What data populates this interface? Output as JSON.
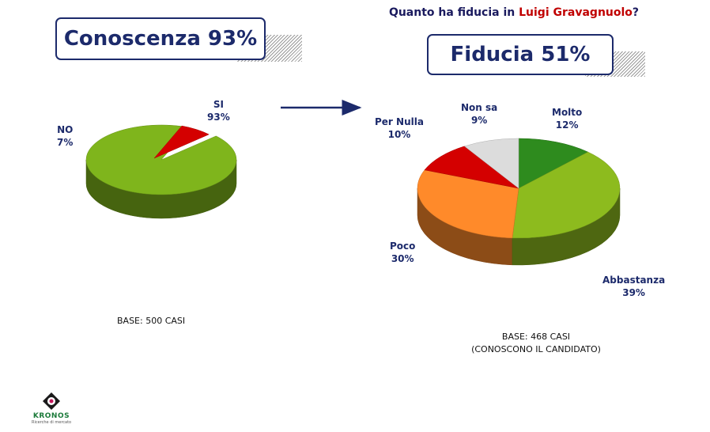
{
  "headline": {
    "prefix": "Quanto ha fiducia in ",
    "name": "Luigi Gravagnuolo",
    "suffix": "?"
  },
  "boxes": {
    "left": "Conoscenza 93%",
    "right": "Fiducia 51%"
  },
  "chart_data": [
    {
      "type": "pie",
      "title": "Conoscenza 93%",
      "slices": [
        {
          "label": "SI",
          "value": 93,
          "pct": "93%",
          "color": "#7fb51c"
        },
        {
          "label": "NO",
          "value": 7,
          "pct": "7%",
          "color": "#d40000"
        }
      ],
      "base": "BASE: 500 CASI"
    },
    {
      "type": "pie",
      "title": "Fiducia 51%",
      "slices": [
        {
          "label": "Molto",
          "value": 12,
          "pct": "12%",
          "color": "#2e8b1e"
        },
        {
          "label": "Abbastanza",
          "value": 39,
          "pct": "39%",
          "color": "#8dbb1e"
        },
        {
          "label": "Poco",
          "value": 30,
          "pct": "30%",
          "color": "#ff8a2a"
        },
        {
          "label": "Per Nulla",
          "value": 10,
          "pct": "10%",
          "color": "#d40000"
        },
        {
          "label": "Non sa",
          "value": 9,
          "pct": "9%",
          "color": "#dcdcdc"
        }
      ],
      "base": "BASE: 468 CASI",
      "base_note": "(CONOSCONO IL CANDIDATO)"
    }
  ],
  "logo": {
    "name": "KRONOS",
    "tagline": "Ricerche di mercato"
  },
  "colors": {
    "navy": "#1c2a6b",
    "red": "#c00000"
  }
}
